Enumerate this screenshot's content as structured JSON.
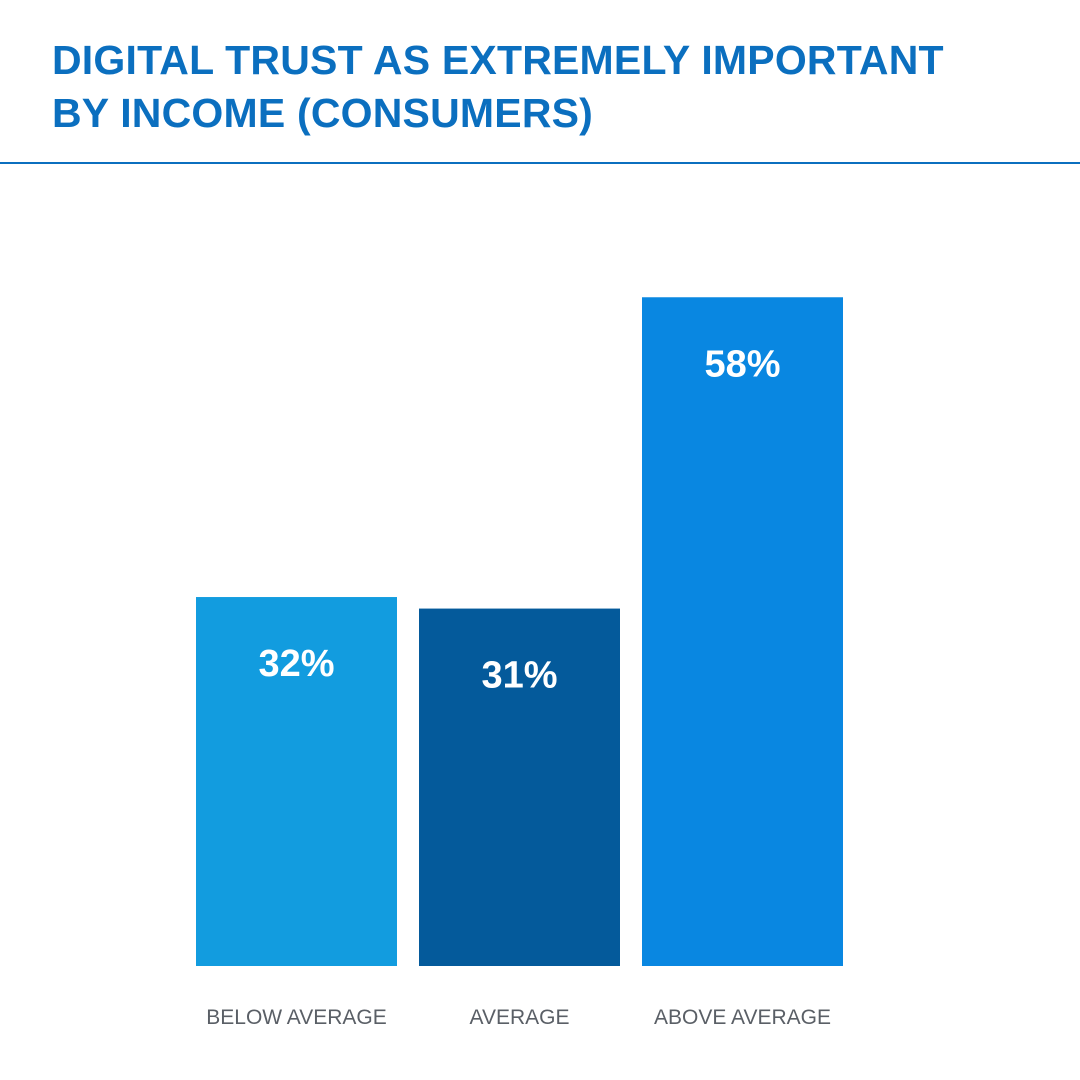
{
  "chart_data": {
    "type": "bar",
    "title": [
      "DIGITAL TRUST AS EXTREMELY IMPORTANT",
      "BY INCOME (CONSUMERS)"
    ],
    "categories": [
      "BELOW AVERAGE",
      "AVERAGE",
      "ABOVE AVERAGE"
    ],
    "values": [
      32,
      31,
      58
    ],
    "data_labels": [
      "32%",
      "31%",
      "58%"
    ],
    "colors": [
      "#129cdf",
      "#045a9b",
      "#0987e1"
    ],
    "xlabel": "",
    "ylabel": "",
    "ylim": [
      0,
      100
    ],
    "grid": false,
    "legend": "none"
  },
  "colors": {
    "title": "#0b6fbf",
    "rule": "#0b6fbf"
  }
}
